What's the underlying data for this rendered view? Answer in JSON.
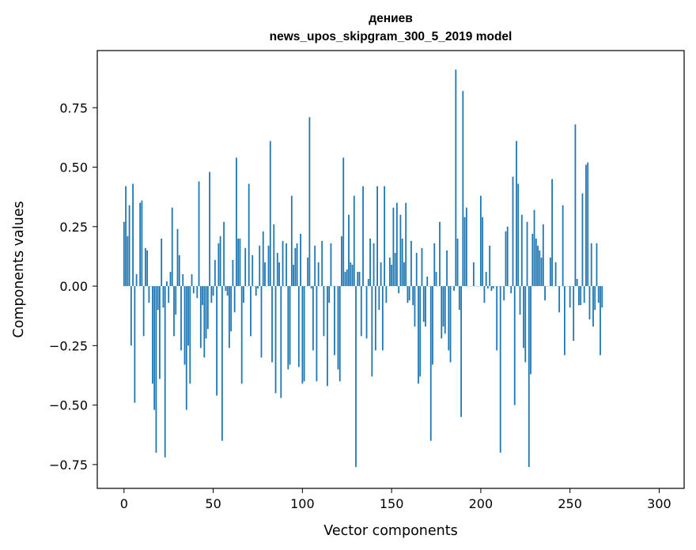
{
  "chart_data": {
    "type": "bar",
    "title_line1": "дениев",
    "title_line2": "news_upos_skipgram_300_5_2019 model",
    "xlabel": "Vector components",
    "ylabel": "Components values",
    "xlim": [
      -15,
      314
    ],
    "ylim": [
      -0.85,
      0.99
    ],
    "xticks": [
      0,
      50,
      100,
      150,
      200,
      250,
      300
    ],
    "yticks": [
      -0.75,
      -0.5,
      -0.25,
      0.0,
      0.25,
      0.5,
      0.75
    ],
    "ytick_labels": [
      "−0.75",
      "−0.50",
      "−0.25",
      "0.00",
      "0.25",
      "0.50",
      "0.75"
    ],
    "grid": false,
    "bar_color": "#1f77b4",
    "values": [
      0.27,
      0.42,
      0.21,
      0.34,
      -0.25,
      0.43,
      -0.49,
      0.05,
      0.0,
      0.35,
      0.36,
      -0.21,
      0.16,
      0.15,
      -0.07,
      0.0,
      -0.41,
      -0.52,
      -0.7,
      -0.1,
      -0.39,
      0.2,
      -0.09,
      -0.72,
      0.02,
      -0.07,
      0.06,
      0.33,
      -0.21,
      -0.12,
      0.24,
      0.13,
      -0.27,
      0.05,
      -0.33,
      -0.52,
      -0.25,
      -0.41,
      0.05,
      -0.03,
      0.0,
      -0.05,
      0.44,
      -0.26,
      -0.08,
      -0.3,
      -0.22,
      -0.18,
      0.48,
      -0.07,
      -0.04,
      0.11,
      -0.46,
      0.18,
      0.21,
      -0.65,
      0.27,
      -0.02,
      -0.04,
      -0.26,
      -0.19,
      0.11,
      -0.11,
      0.54,
      0.2,
      0.2,
      -0.41,
      -0.07,
      0.16,
      0.0,
      0.43,
      -0.21,
      0.13,
      0.0,
      -0.04,
      -0.01,
      0.17,
      -0.3,
      0.23,
      0.1,
      0.0,
      0.17,
      0.61,
      -0.32,
      0.26,
      -0.45,
      0.14,
      0.1,
      -0.47,
      0.19,
      0.0,
      0.18,
      -0.35,
      -0.33,
      0.38,
      0.09,
      0.16,
      0.18,
      -0.34,
      0.22,
      -0.41,
      -0.4,
      0.0,
      0.12,
      0.71,
      -0.01,
      -0.27,
      0.17,
      -0.4,
      0.1,
      0.0,
      0.19,
      -0.21,
      0.0,
      -0.42,
      -0.07,
      0.18,
      0.0,
      -0.29,
      0.0,
      -0.35,
      -0.4,
      0.21,
      0.54,
      0.06,
      0.07,
      0.3,
      0.1,
      0.09,
      0.38,
      -0.76,
      0.06,
      0.06,
      -0.21,
      0.42,
      0.0,
      -0.22,
      0.03,
      0.2,
      -0.38,
      0.18,
      -0.27,
      0.42,
      -0.1,
      0.1,
      -0.27,
      0.42,
      -0.07,
      0.0,
      0.12,
      0.09,
      0.33,
      0.14,
      0.35,
      -0.03,
      0.3,
      0.2,
      0.1,
      0.35,
      -0.07,
      -0.06,
      0.19,
      -0.08,
      -0.17,
      0.14,
      -0.41,
      -0.38,
      0.16,
      -0.15,
      -0.17,
      0.04,
      0.0,
      -0.65,
      -0.33,
      0.18,
      0.06,
      0.0,
      0.27,
      -0.22,
      -0.17,
      -0.2,
      0.15,
      -0.27,
      -0.32,
      0.0,
      -0.02,
      0.91,
      0.2,
      -0.1,
      -0.55,
      0.82,
      0.29,
      0.33,
      0.0,
      0.0,
      0.0,
      0.1,
      0.0,
      0.0,
      0.0,
      0.38,
      0.29,
      -0.07,
      0.06,
      -0.01,
      0.17,
      -0.02,
      -0.01,
      0.0,
      -0.27,
      0.0,
      -0.7,
      0.0,
      -0.06,
      0.23,
      0.25,
      0.0,
      -0.03,
      0.46,
      -0.5,
      0.61,
      0.43,
      -0.12,
      0.3,
      -0.26,
      -0.32,
      0.27,
      -0.76,
      -0.37,
      0.22,
      0.32,
      0.2,
      0.17,
      0.15,
      0.12,
      0.26,
      -0.06,
      0.0,
      0.0,
      0.12,
      0.45,
      0.0,
      0.1,
      0.0,
      -0.11,
      0.0,
      0.34,
      -0.29,
      0.0,
      0.0,
      -0.09,
      0.0,
      -0.23,
      0.68,
      0.03,
      -0.08,
      -0.08,
      0.39,
      -0.07,
      0.51,
      0.52,
      -0.14,
      0.18,
      -0.17,
      -0.1,
      0.18,
      -0.07,
      -0.29,
      -0.09
    ]
  }
}
